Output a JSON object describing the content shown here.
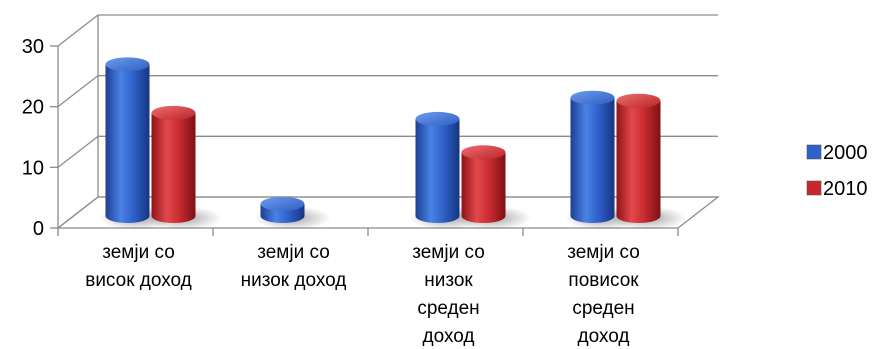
{
  "chart_data": {
    "type": "bar",
    "categories": [
      [
        "земји со",
        "висок доход"
      ],
      [
        "земји со",
        "низок доход"
      ],
      [
        "земји со",
        "низок",
        "среден",
        "доход"
      ],
      [
        "земји со",
        "повисок",
        "среден",
        "доход"
      ]
    ],
    "series": [
      {
        "name": "2000",
        "color": "#2f62c8",
        "values": [
          25,
          2,
          16,
          19.5
        ]
      },
      {
        "name": "2010",
        "color": "#c8282d",
        "values": [
          17,
          null,
          10.5,
          19
        ]
      }
    ],
    "yticks": [
      "0",
      "10",
      "20",
      "30"
    ],
    "ylim": [
      0,
      30
    ],
    "grid": true,
    "legend": "right",
    "style": "3d-cylinder"
  }
}
